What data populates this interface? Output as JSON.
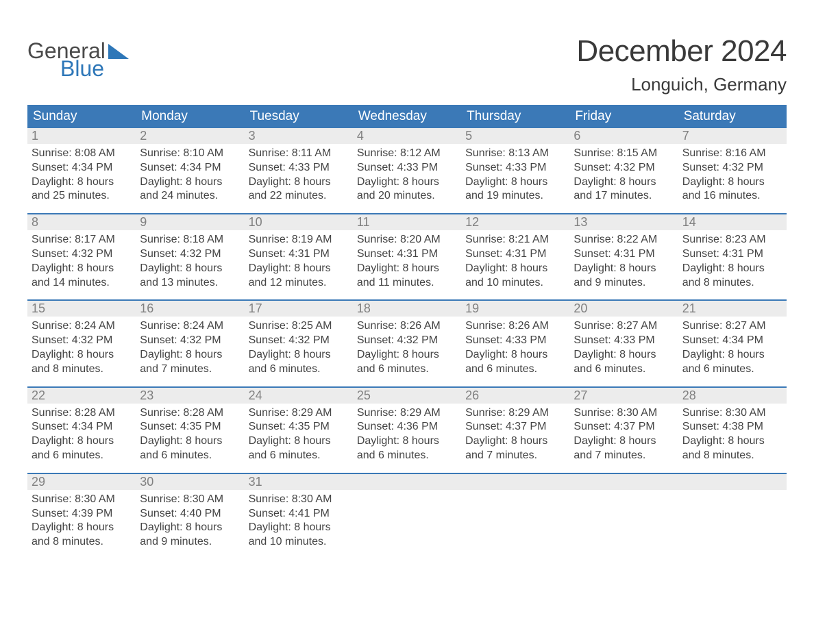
{
  "logo": {
    "line1": "General",
    "line2": "Blue"
  },
  "title": "December 2024",
  "location": "Longuich, Germany",
  "colors": {
    "header_bg": "#3b79b7",
    "header_text": "#ffffff",
    "daynum_bg": "#ececec",
    "daynum_text": "#808080",
    "body_text": "#444444",
    "week_border": "#3b79b7",
    "logo_gray": "#4a4a4a",
    "logo_blue": "#2e77b8",
    "page_bg": "#ffffff"
  },
  "day_names": [
    "Sunday",
    "Monday",
    "Tuesday",
    "Wednesday",
    "Thursday",
    "Friday",
    "Saturday"
  ],
  "weeks": [
    [
      {
        "n": "1",
        "sr": "Sunrise: 8:08 AM",
        "ss": "Sunset: 4:34 PM",
        "d1": "Daylight: 8 hours",
        "d2": "and 25 minutes."
      },
      {
        "n": "2",
        "sr": "Sunrise: 8:10 AM",
        "ss": "Sunset: 4:34 PM",
        "d1": "Daylight: 8 hours",
        "d2": "and 24 minutes."
      },
      {
        "n": "3",
        "sr": "Sunrise: 8:11 AM",
        "ss": "Sunset: 4:33 PM",
        "d1": "Daylight: 8 hours",
        "d2": "and 22 minutes."
      },
      {
        "n": "4",
        "sr": "Sunrise: 8:12 AM",
        "ss": "Sunset: 4:33 PM",
        "d1": "Daylight: 8 hours",
        "d2": "and 20 minutes."
      },
      {
        "n": "5",
        "sr": "Sunrise: 8:13 AM",
        "ss": "Sunset: 4:33 PM",
        "d1": "Daylight: 8 hours",
        "d2": "and 19 minutes."
      },
      {
        "n": "6",
        "sr": "Sunrise: 8:15 AM",
        "ss": "Sunset: 4:32 PM",
        "d1": "Daylight: 8 hours",
        "d2": "and 17 minutes."
      },
      {
        "n": "7",
        "sr": "Sunrise: 8:16 AM",
        "ss": "Sunset: 4:32 PM",
        "d1": "Daylight: 8 hours",
        "d2": "and 16 minutes."
      }
    ],
    [
      {
        "n": "8",
        "sr": "Sunrise: 8:17 AM",
        "ss": "Sunset: 4:32 PM",
        "d1": "Daylight: 8 hours",
        "d2": "and 14 minutes."
      },
      {
        "n": "9",
        "sr": "Sunrise: 8:18 AM",
        "ss": "Sunset: 4:32 PM",
        "d1": "Daylight: 8 hours",
        "d2": "and 13 minutes."
      },
      {
        "n": "10",
        "sr": "Sunrise: 8:19 AM",
        "ss": "Sunset: 4:31 PM",
        "d1": "Daylight: 8 hours",
        "d2": "and 12 minutes."
      },
      {
        "n": "11",
        "sr": "Sunrise: 8:20 AM",
        "ss": "Sunset: 4:31 PM",
        "d1": "Daylight: 8 hours",
        "d2": "and 11 minutes."
      },
      {
        "n": "12",
        "sr": "Sunrise: 8:21 AM",
        "ss": "Sunset: 4:31 PM",
        "d1": "Daylight: 8 hours",
        "d2": "and 10 minutes."
      },
      {
        "n": "13",
        "sr": "Sunrise: 8:22 AM",
        "ss": "Sunset: 4:31 PM",
        "d1": "Daylight: 8 hours",
        "d2": "and 9 minutes."
      },
      {
        "n": "14",
        "sr": "Sunrise: 8:23 AM",
        "ss": "Sunset: 4:31 PM",
        "d1": "Daylight: 8 hours",
        "d2": "and 8 minutes."
      }
    ],
    [
      {
        "n": "15",
        "sr": "Sunrise: 8:24 AM",
        "ss": "Sunset: 4:32 PM",
        "d1": "Daylight: 8 hours",
        "d2": "and 8 minutes."
      },
      {
        "n": "16",
        "sr": "Sunrise: 8:24 AM",
        "ss": "Sunset: 4:32 PM",
        "d1": "Daylight: 8 hours",
        "d2": "and 7 minutes."
      },
      {
        "n": "17",
        "sr": "Sunrise: 8:25 AM",
        "ss": "Sunset: 4:32 PM",
        "d1": "Daylight: 8 hours",
        "d2": "and 6 minutes."
      },
      {
        "n": "18",
        "sr": "Sunrise: 8:26 AM",
        "ss": "Sunset: 4:32 PM",
        "d1": "Daylight: 8 hours",
        "d2": "and 6 minutes."
      },
      {
        "n": "19",
        "sr": "Sunrise: 8:26 AM",
        "ss": "Sunset: 4:33 PM",
        "d1": "Daylight: 8 hours",
        "d2": "and 6 minutes."
      },
      {
        "n": "20",
        "sr": "Sunrise: 8:27 AM",
        "ss": "Sunset: 4:33 PM",
        "d1": "Daylight: 8 hours",
        "d2": "and 6 minutes."
      },
      {
        "n": "21",
        "sr": "Sunrise: 8:27 AM",
        "ss": "Sunset: 4:34 PM",
        "d1": "Daylight: 8 hours",
        "d2": "and 6 minutes."
      }
    ],
    [
      {
        "n": "22",
        "sr": "Sunrise: 8:28 AM",
        "ss": "Sunset: 4:34 PM",
        "d1": "Daylight: 8 hours",
        "d2": "and 6 minutes."
      },
      {
        "n": "23",
        "sr": "Sunrise: 8:28 AM",
        "ss": "Sunset: 4:35 PM",
        "d1": "Daylight: 8 hours",
        "d2": "and 6 minutes."
      },
      {
        "n": "24",
        "sr": "Sunrise: 8:29 AM",
        "ss": "Sunset: 4:35 PM",
        "d1": "Daylight: 8 hours",
        "d2": "and 6 minutes."
      },
      {
        "n": "25",
        "sr": "Sunrise: 8:29 AM",
        "ss": "Sunset: 4:36 PM",
        "d1": "Daylight: 8 hours",
        "d2": "and 6 minutes."
      },
      {
        "n": "26",
        "sr": "Sunrise: 8:29 AM",
        "ss": "Sunset: 4:37 PM",
        "d1": "Daylight: 8 hours",
        "d2": "and 7 minutes."
      },
      {
        "n": "27",
        "sr": "Sunrise: 8:30 AM",
        "ss": "Sunset: 4:37 PM",
        "d1": "Daylight: 8 hours",
        "d2": "and 7 minutes."
      },
      {
        "n": "28",
        "sr": "Sunrise: 8:30 AM",
        "ss": "Sunset: 4:38 PM",
        "d1": "Daylight: 8 hours",
        "d2": "and 8 minutes."
      }
    ],
    [
      {
        "n": "29",
        "sr": "Sunrise: 8:30 AM",
        "ss": "Sunset: 4:39 PM",
        "d1": "Daylight: 8 hours",
        "d2": "and 8 minutes."
      },
      {
        "n": "30",
        "sr": "Sunrise: 8:30 AM",
        "ss": "Sunset: 4:40 PM",
        "d1": "Daylight: 8 hours",
        "d2": "and 9 minutes."
      },
      {
        "n": "31",
        "sr": "Sunrise: 8:30 AM",
        "ss": "Sunset: 4:41 PM",
        "d1": "Daylight: 8 hours",
        "d2": "and 10 minutes."
      },
      {
        "empty": true
      },
      {
        "empty": true
      },
      {
        "empty": true
      },
      {
        "empty": true
      }
    ]
  ]
}
